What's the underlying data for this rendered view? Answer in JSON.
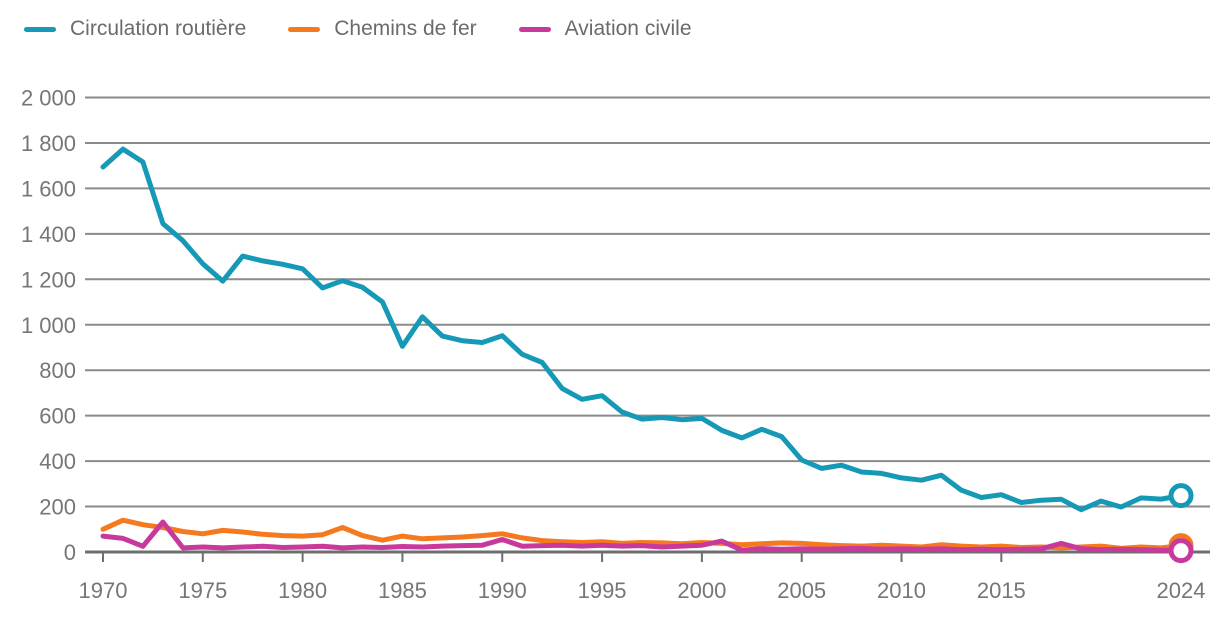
{
  "legend": {
    "items": [
      {
        "label": "Circulation routière",
        "color": "#1599b6"
      },
      {
        "label": "Chemins de fer",
        "color": "#f5791e"
      },
      {
        "label": "Aviation civile",
        "color": "#c8399c"
      }
    ]
  },
  "axis": {
    "grid_color": "#8a8a8a",
    "baseline_color": "#6e6e6e",
    "label_color": "#767676"
  },
  "chart_data": {
    "type": "line",
    "title": "",
    "xlabel": "",
    "ylabel": "",
    "ylim": [
      0,
      2000
    ],
    "grid": "horizontal",
    "legend_position": "top-left",
    "end_markers": "open-circle",
    "x": [
      1970,
      1971,
      1972,
      1973,
      1974,
      1975,
      1976,
      1977,
      1978,
      1979,
      1980,
      1981,
      1982,
      1983,
      1984,
      1985,
      1986,
      1987,
      1988,
      1989,
      1990,
      1991,
      1992,
      1993,
      1994,
      1995,
      1996,
      1997,
      1998,
      1999,
      2000,
      2001,
      2002,
      2003,
      2004,
      2005,
      2006,
      2007,
      2008,
      2009,
      2010,
      2011,
      2012,
      2013,
      2014,
      2015,
      2016,
      2017,
      2018,
      2019,
      2020,
      2021,
      2022,
      2023,
      2024
    ],
    "xticks": [
      1970,
      1975,
      1980,
      1985,
      1990,
      1995,
      2000,
      2005,
      2010,
      2015,
      2024
    ],
    "xtick_labels": [
      "1970",
      "1975",
      "1980",
      "1985",
      "1990",
      "1995",
      "2000",
      "2005",
      "2010",
      "2015",
      "2024"
    ],
    "yticks": [
      0,
      200,
      400,
      600,
      800,
      1000,
      1200,
      1400,
      1600,
      1800,
      2000
    ],
    "ytick_labels": [
      "0",
      "200",
      "400",
      "600",
      "800",
      "1 000",
      "1 200",
      "1 400",
      "1 600",
      "1 800",
      "2 000"
    ],
    "series": [
      {
        "name": "Circulation routière",
        "color": "#1599b6",
        "values": [
          1694,
          1773,
          1716,
          1445,
          1370,
          1268,
          1192,
          1302,
          1281,
          1266,
          1246,
          1162,
          1194,
          1165,
          1100,
          905,
          1035,
          950,
          930,
          922,
          952,
          870,
          834,
          720,
          672,
          688,
          616,
          585,
          592,
          582,
          588,
          535,
          502,
          540,
          508,
          405,
          368,
          382,
          352,
          346,
          326,
          316,
          338,
          272,
          240,
          252,
          218,
          228,
          232,
          186,
          224,
          198,
          238,
          233,
          248
        ]
      },
      {
        "name": "Chemins de fer",
        "color": "#f5791e",
        "values": [
          100,
          140,
          120,
          108,
          90,
          80,
          95,
          88,
          78,
          72,
          70,
          76,
          108,
          72,
          52,
          70,
          58,
          62,
          66,
          72,
          80,
          62,
          50,
          45,
          42,
          45,
          38,
          42,
          40,
          36,
          42,
          38,
          32,
          36,
          40,
          38,
          32,
          28,
          26,
          30,
          26,
          22,
          32,
          26,
          22,
          26,
          20,
          22,
          18,
          22,
          26,
          16,
          22,
          18,
          28
        ]
      },
      {
        "name": "Aviation civile",
        "color": "#c8399c",
        "values": [
          70,
          60,
          25,
          132,
          18,
          22,
          18,
          22,
          25,
          20,
          22,
          25,
          18,
          22,
          20,
          24,
          22,
          26,
          28,
          30,
          55,
          25,
          28,
          30,
          26,
          30,
          26,
          28,
          22,
          26,
          30,
          48,
          8,
          15,
          12,
          14,
          12,
          14,
          16,
          12,
          14,
          12,
          14,
          10,
          12,
          10,
          12,
          14,
          38,
          14,
          10,
          12,
          10,
          8,
          6
        ]
      }
    ]
  }
}
